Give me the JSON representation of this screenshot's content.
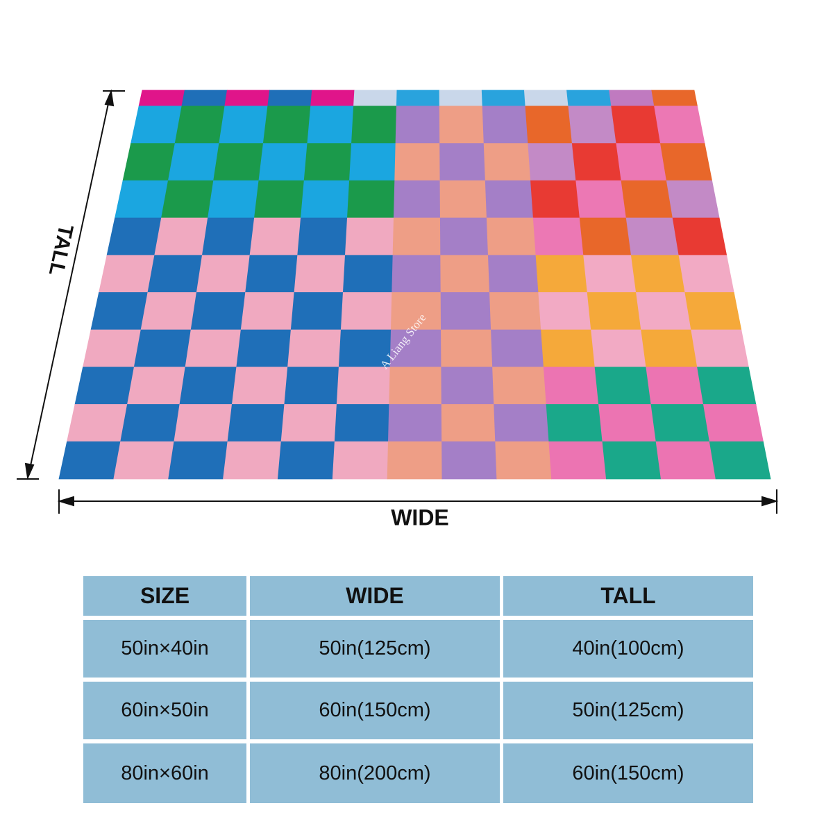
{
  "labels": {
    "tall": "TALL",
    "wide": "WIDE",
    "watermark": "A Liang Store"
  },
  "table": {
    "header": [
      "SIZE",
      "WIDE",
      "TALL"
    ],
    "rows": [
      [
        "50in×40in",
        "50in(125cm)",
        "40in(100cm)"
      ],
      [
        "60in×50in",
        "60in(150cm)",
        "50in(125cm)"
      ],
      [
        "80in×60in",
        "80in(200cm)",
        "60in(150cm)"
      ]
    ]
  }
}
